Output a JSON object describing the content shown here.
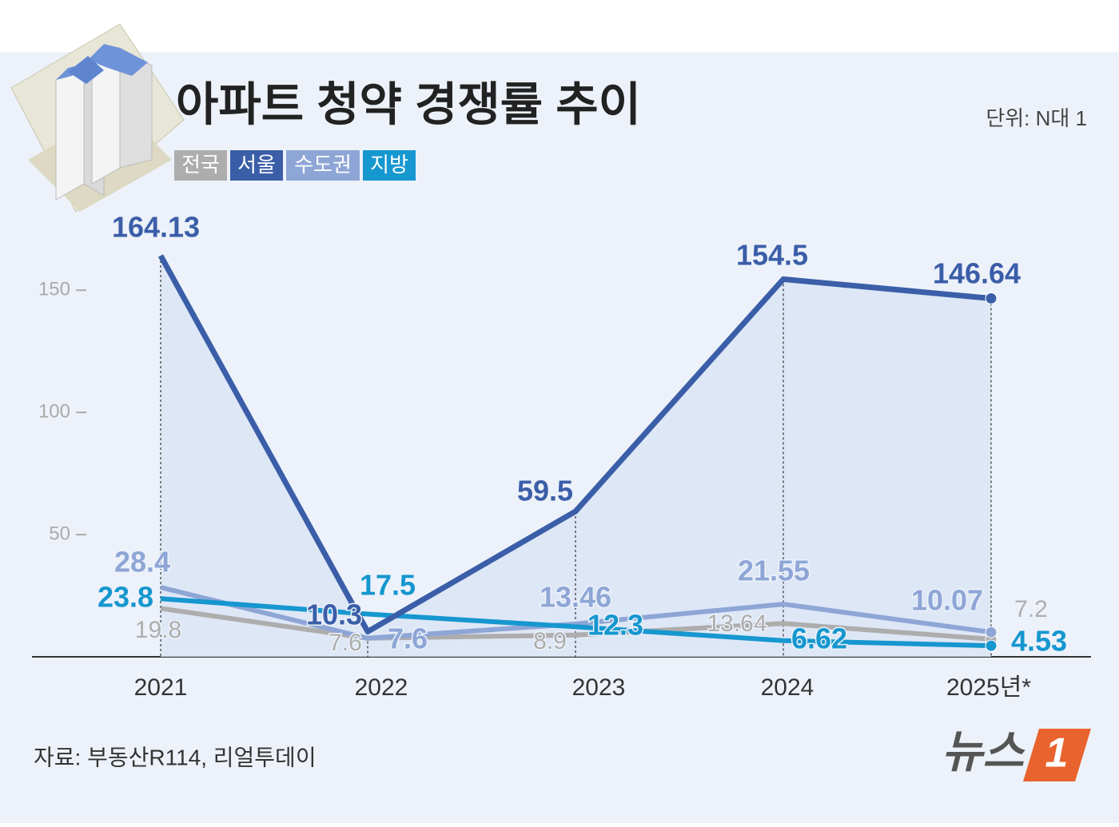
{
  "chart_data": {
    "type": "line",
    "title": "아파트 청약 경쟁률 추이",
    "unit": "단위: N대 1",
    "source": "자료: 부동산R114, 리얼투데이",
    "logo": "뉴스",
    "logo_badge": "1",
    "categories": [
      "2021",
      "2022",
      "2023",
      "2024",
      "2025년*"
    ],
    "series": [
      {
        "name": "전국",
        "color": "#adadad",
        "values": [
          19.8,
          7.6,
          8.9,
          13.64,
          7.2
        ]
      },
      {
        "name": "서울",
        "color": "#3b5ea8",
        "values": [
          164.13,
          10.3,
          59.5,
          154.5,
          146.64
        ]
      },
      {
        "name": "수도권",
        "color": "#8ea6d6",
        "values": [
          28.4,
          7.6,
          13.46,
          21.55,
          10.07
        ]
      },
      {
        "name": "지방",
        "color": "#1697cf",
        "values": [
          23.8,
          17.5,
          12.3,
          6.62,
          4.53
        ]
      }
    ],
    "ylim": [
      0,
      170
    ],
    "yticks": [
      50,
      100,
      150
    ]
  }
}
